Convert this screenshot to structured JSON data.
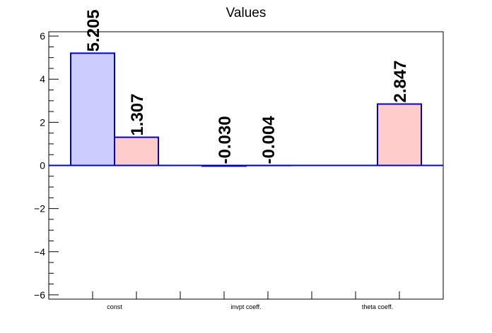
{
  "chart_data": {
    "type": "bar",
    "title": "Values",
    "xlabel": "",
    "ylabel": "",
    "categories": [
      "const",
      "invpt coeff.",
      "theta coeff."
    ],
    "ylim": [
      -6.2,
      6.2
    ],
    "yticks": [
      "6",
      "4",
      "2",
      "0",
      "−2",
      "−4",
      "−6"
    ],
    "grid": false,
    "legend": "none",
    "series": [
      {
        "values": [
          5.205,
          -0.03,
          null
        ],
        "labels": [
          "5.205",
          "-0.030",
          ""
        ],
        "fill": "#ccccff",
        "stroke": "#0000cc"
      },
      {
        "values": [
          1.307,
          -0.004,
          2.847
        ],
        "labels": [
          "1.307",
          "-0.004",
          "2.847"
        ],
        "fill": "#ffcccc",
        "stroke": "#0000cc"
      }
    ],
    "zero_line_color": "#0000cc"
  }
}
